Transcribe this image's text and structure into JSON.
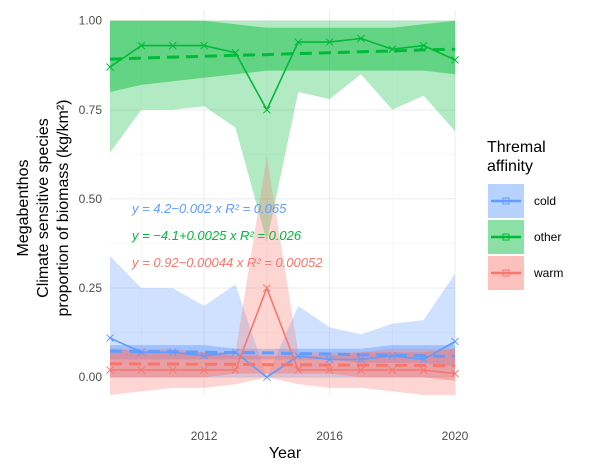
{
  "chart_data": {
    "type": "line",
    "title": "",
    "xlabel": "Year",
    "ylabel_lines": [
      "Megabenthos",
      "Climate sensitive species",
      "proportion of biomass (kg/km²)"
    ],
    "xlim": [
      2009,
      2020
    ],
    "ylim": [
      -0.05,
      1.03
    ],
    "x_ticks": [
      2012,
      2016,
      2020
    ],
    "x_tick_labels": [
      "2012",
      "2016",
      "2020"
    ],
    "y_ticks": [
      0,
      0.25,
      0.5,
      0.75,
      1.0
    ],
    "y_tick_labels": [
      "0.00",
      "0.25",
      "0.50",
      "0.75",
      "1.00"
    ],
    "grid": true,
    "legend": {
      "title_lines": [
        "Thremal",
        " affinity"
      ],
      "position": "right",
      "entries": [
        "cold",
        "other",
        "warm"
      ]
    },
    "x": [
      2009,
      2010,
      2011,
      2012,
      2013,
      2014,
      2015,
      2016,
      2017,
      2018,
      2019,
      2020
    ],
    "series": [
      {
        "name": "cold",
        "color": "#619CFF",
        "values": [
          0.11,
          0.07,
          0.07,
          0.06,
          0.07,
          0.0,
          0.06,
          0.05,
          0.05,
          0.06,
          0.05,
          0.1
        ],
        "band_low": [
          0.0,
          0.0,
          0.0,
          0.0,
          0.0,
          0.0,
          0.0,
          0.0,
          0.0,
          0.0,
          0.0,
          0.0
        ],
        "band_high": [
          0.34,
          0.25,
          0.25,
          0.2,
          0.26,
          0.0,
          0.2,
          0.14,
          0.12,
          0.15,
          0.16,
          0.29
        ],
        "fit_low": [
          0.05,
          0.05,
          0.05,
          0.05,
          0.05,
          0.05,
          0.05,
          0.05,
          0.04,
          0.04,
          0.04,
          0.03
        ],
        "fit_high": [
          0.09,
          0.09,
          0.09,
          0.09,
          0.08,
          0.08,
          0.08,
          0.08,
          0.08,
          0.09,
          0.09,
          0.09
        ],
        "trend": [
          0.073,
          0.072,
          0.071,
          0.07,
          0.069,
          0.068,
          0.066,
          0.065,
          0.063,
          0.062,
          0.06,
          0.058
        ]
      },
      {
        "name": "other",
        "color": "#00BA38",
        "values": [
          0.87,
          0.93,
          0.93,
          0.93,
          0.91,
          0.75,
          0.94,
          0.94,
          0.95,
          0.92,
          0.93,
          0.89
        ],
        "band_low": [
          0.63,
          0.75,
          0.75,
          0.76,
          0.7,
          0.38,
          0.8,
          0.78,
          0.85,
          0.75,
          0.79,
          0.69
        ],
        "band_high": [
          1.0,
          1.0,
          1.0,
          1.0,
          1.0,
          1.0,
          1.0,
          1.0,
          1.0,
          1.0,
          1.0,
          1.0
        ],
        "fit_low": [
          0.8,
          0.82,
          0.83,
          0.84,
          0.85,
          0.86,
          0.86,
          0.86,
          0.86,
          0.86,
          0.86,
          0.85
        ],
        "fit_high": [
          1.0,
          1.0,
          1.0,
          1.0,
          0.99,
          0.98,
          0.98,
          0.98,
          0.98,
          0.98,
          0.99,
          1.0
        ],
        "trend": [
          0.892,
          0.895,
          0.898,
          0.9,
          0.903,
          0.905,
          0.908,
          0.91,
          0.913,
          0.915,
          0.918,
          0.92
        ]
      },
      {
        "name": "warm",
        "color": "#F8766D",
        "values": [
          0.02,
          0.02,
          0.02,
          0.02,
          0.02,
          0.25,
          0.02,
          0.02,
          0.02,
          0.02,
          0.02,
          0.01
        ],
        "band_low": [
          -0.05,
          -0.04,
          -0.03,
          -0.03,
          -0.02,
          0.0,
          -0.02,
          -0.03,
          -0.03,
          -0.04,
          -0.05,
          -0.05
        ],
        "band_high": [
          0.08,
          0.08,
          0.08,
          0.07,
          0.07,
          0.62,
          0.07,
          0.07,
          0.07,
          0.08,
          0.08,
          0.08
        ],
        "fit_low": [
          0.0,
          0.0,
          0.0,
          0.0,
          0.01,
          0.01,
          0.01,
          0.01,
          0.0,
          0.0,
          0.0,
          -0.01
        ],
        "fit_high": [
          0.08,
          0.07,
          0.07,
          0.07,
          0.06,
          0.06,
          0.06,
          0.06,
          0.07,
          0.07,
          0.07,
          0.08
        ],
        "trend": [
          0.038,
          0.037,
          0.037,
          0.036,
          0.036,
          0.035,
          0.035,
          0.034,
          0.034,
          0.033,
          0.033,
          0.032
        ]
      }
    ],
    "annotations": [
      {
        "series": "cold",
        "text": "y = 4.2−0.002 x    R² = 0.065",
        "color": "#619CFF"
      },
      {
        "series": "other",
        "text": "y = −4.1+0.0025 x    R² = 0.026",
        "color": "#00BA38"
      },
      {
        "series": "warm",
        "text": "y = 0.92−0.00044 x    R² = 0.00052",
        "color": "#F8766D"
      }
    ]
  }
}
